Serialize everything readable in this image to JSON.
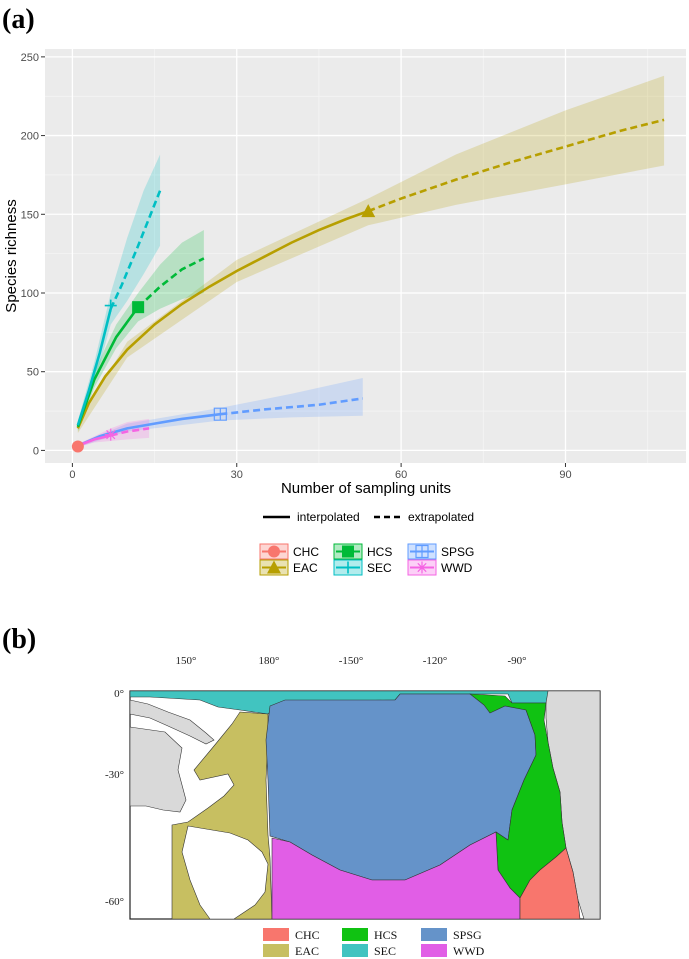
{
  "panel_a_label": "(a)",
  "panel_b_label": "(b)",
  "colors": {
    "CHC": "#f8766d",
    "EAC": "#b79f00",
    "HCS": "#00ba38",
    "SEC": "#00bfc4",
    "SPSG": "#619cff",
    "WWD": "#f564e3"
  },
  "chart_data": [
    {
      "type": "line",
      "xlabel": "Number of sampling units",
      "ylabel": "Species richness",
      "xlim": [
        -5,
        112
      ],
      "ylim": [
        -8,
        255
      ],
      "x_ticks": [
        0,
        30,
        60,
        90
      ],
      "y_ticks": [
        0,
        50,
        100,
        150,
        200,
        250
      ],
      "grid": true,
      "linetype_legend": [
        "interpolated",
        "extrapolated"
      ],
      "series": [
        {
          "name": "CHC",
          "marker": "circle",
          "color": "#f8766d",
          "interpolated": [
            [
              1,
              2.5
            ]
          ],
          "extrapolated": [],
          "ref": [
            1,
            2.5
          ],
          "band": [
            [
              0.6,
              1.5,
              4
            ],
            [
              1.4,
              1.5,
              4
            ]
          ]
        },
        {
          "name": "EAC",
          "marker": "triangle",
          "color": "#b79f00",
          "interpolated": [
            [
              1,
              14
            ],
            [
              3,
              30
            ],
            [
              6,
              47
            ],
            [
              10,
              64
            ],
            [
              15,
              80
            ],
            [
              20,
              93
            ],
            [
              25,
              104
            ],
            [
              30,
              114
            ],
            [
              35,
              123
            ],
            [
              40,
              132
            ],
            [
              45,
              140
            ],
            [
              50,
              147
            ],
            [
              54,
              152
            ]
          ],
          "extrapolated": [
            [
              54,
              152
            ],
            [
              60,
              160
            ],
            [
              70,
              172
            ],
            [
              80,
              183
            ],
            [
              90,
              193
            ],
            [
              100,
              203
            ],
            [
              108,
              210
            ]
          ],
          "ref": [
            54,
            152
          ],
          "band": [
            [
              1,
              11,
              17
            ],
            [
              10,
              59,
              69
            ],
            [
              30,
              107,
              121
            ],
            [
              54,
              143,
              160
            ],
            [
              70,
              156,
              188
            ],
            [
              90,
              169,
              216
            ],
            [
              108,
              181,
              238
            ]
          ]
        },
        {
          "name": "HCS",
          "marker": "square",
          "color": "#00ba38",
          "interpolated": [
            [
              1,
              15
            ],
            [
              4,
              45
            ],
            [
              8,
              72
            ],
            [
              12,
              91
            ]
          ],
          "extrapolated": [
            [
              12,
              91
            ],
            [
              16,
              104
            ],
            [
              20,
              115
            ],
            [
              24,
              122
            ]
          ],
          "ref": [
            12,
            91
          ],
          "band": [
            [
              1,
              12,
              18
            ],
            [
              4,
              40,
              50
            ],
            [
              8,
              65,
              80
            ],
            [
              12,
              82,
              100
            ],
            [
              16,
              90,
              118
            ],
            [
              20,
              96,
              132
            ],
            [
              24,
              100,
              140
            ]
          ]
        },
        {
          "name": "SEC",
          "marker": "plus",
          "color": "#00bfc4",
          "interpolated": [
            [
              1,
              16
            ],
            [
              3,
              38
            ],
            [
              5,
              62
            ],
            [
              7,
              90
            ]
          ],
          "extrapolated": [
            [
              7,
              90
            ],
            [
              9,
              105
            ],
            [
              12,
              130
            ],
            [
              16,
              165
            ]
          ],
          "ref": [
            7,
            92
          ],
          "band": [
            [
              1,
              13,
              19
            ],
            [
              4,
              42,
              56
            ],
            [
              7,
              80,
              100
            ],
            [
              10,
              95,
              135
            ],
            [
              13,
              112,
              165
            ],
            [
              16,
              130,
              188
            ]
          ]
        },
        {
          "name": "SPSG",
          "marker": "boxplus",
          "color": "#619cff",
          "interpolated": [
            [
              1,
              3
            ],
            [
              5,
              9
            ],
            [
              10,
              14
            ],
            [
              15,
              17
            ],
            [
              20,
              20
            ],
            [
              27,
              23
            ]
          ],
          "extrapolated": [
            [
              27,
              23
            ],
            [
              35,
              26
            ],
            [
              45,
              29
            ],
            [
              53,
              33
            ]
          ],
          "ref": [
            27,
            23
          ],
          "band": [
            [
              1,
              2,
              4
            ],
            [
              10,
              12,
              17
            ],
            [
              27,
              19,
              27
            ],
            [
              40,
              21,
              36
            ],
            [
              53,
              22,
              46
            ]
          ]
        },
        {
          "name": "WWD",
          "marker": "asterisk",
          "color": "#f564e3",
          "interpolated": [
            [
              1,
              3
            ],
            [
              4,
              7
            ],
            [
              7,
              9.5
            ]
          ],
          "extrapolated": [
            [
              7,
              9.5
            ],
            [
              10,
              12
            ],
            [
              14,
              14
            ]
          ],
          "ref": [
            7,
            10
          ],
          "band": [
            [
              1,
              2,
              4
            ],
            [
              4,
              5,
              9
            ],
            [
              7,
              6,
              14
            ],
            [
              10,
              7,
              18
            ],
            [
              14,
              8,
              20
            ]
          ]
        }
      ]
    },
    {
      "type": "map",
      "x_ticks": [
        "150°",
        "180°",
        "-150°",
        "-120°",
        "-90°"
      ],
      "y_ticks": [
        "0°",
        "-30°",
        "-60°"
      ],
      "legend": [
        "CHC",
        "HCS",
        "SPSG",
        "EAC",
        "SEC",
        "WWD"
      ],
      "region_colors": {
        "CHC": "#f8766d",
        "EAC": "#c7bf61",
        "HCS": "#10c212",
        "SEC": "#41c4c0",
        "SPSG": "#6593c9",
        "WWD": "#e15ee6"
      }
    }
  ]
}
